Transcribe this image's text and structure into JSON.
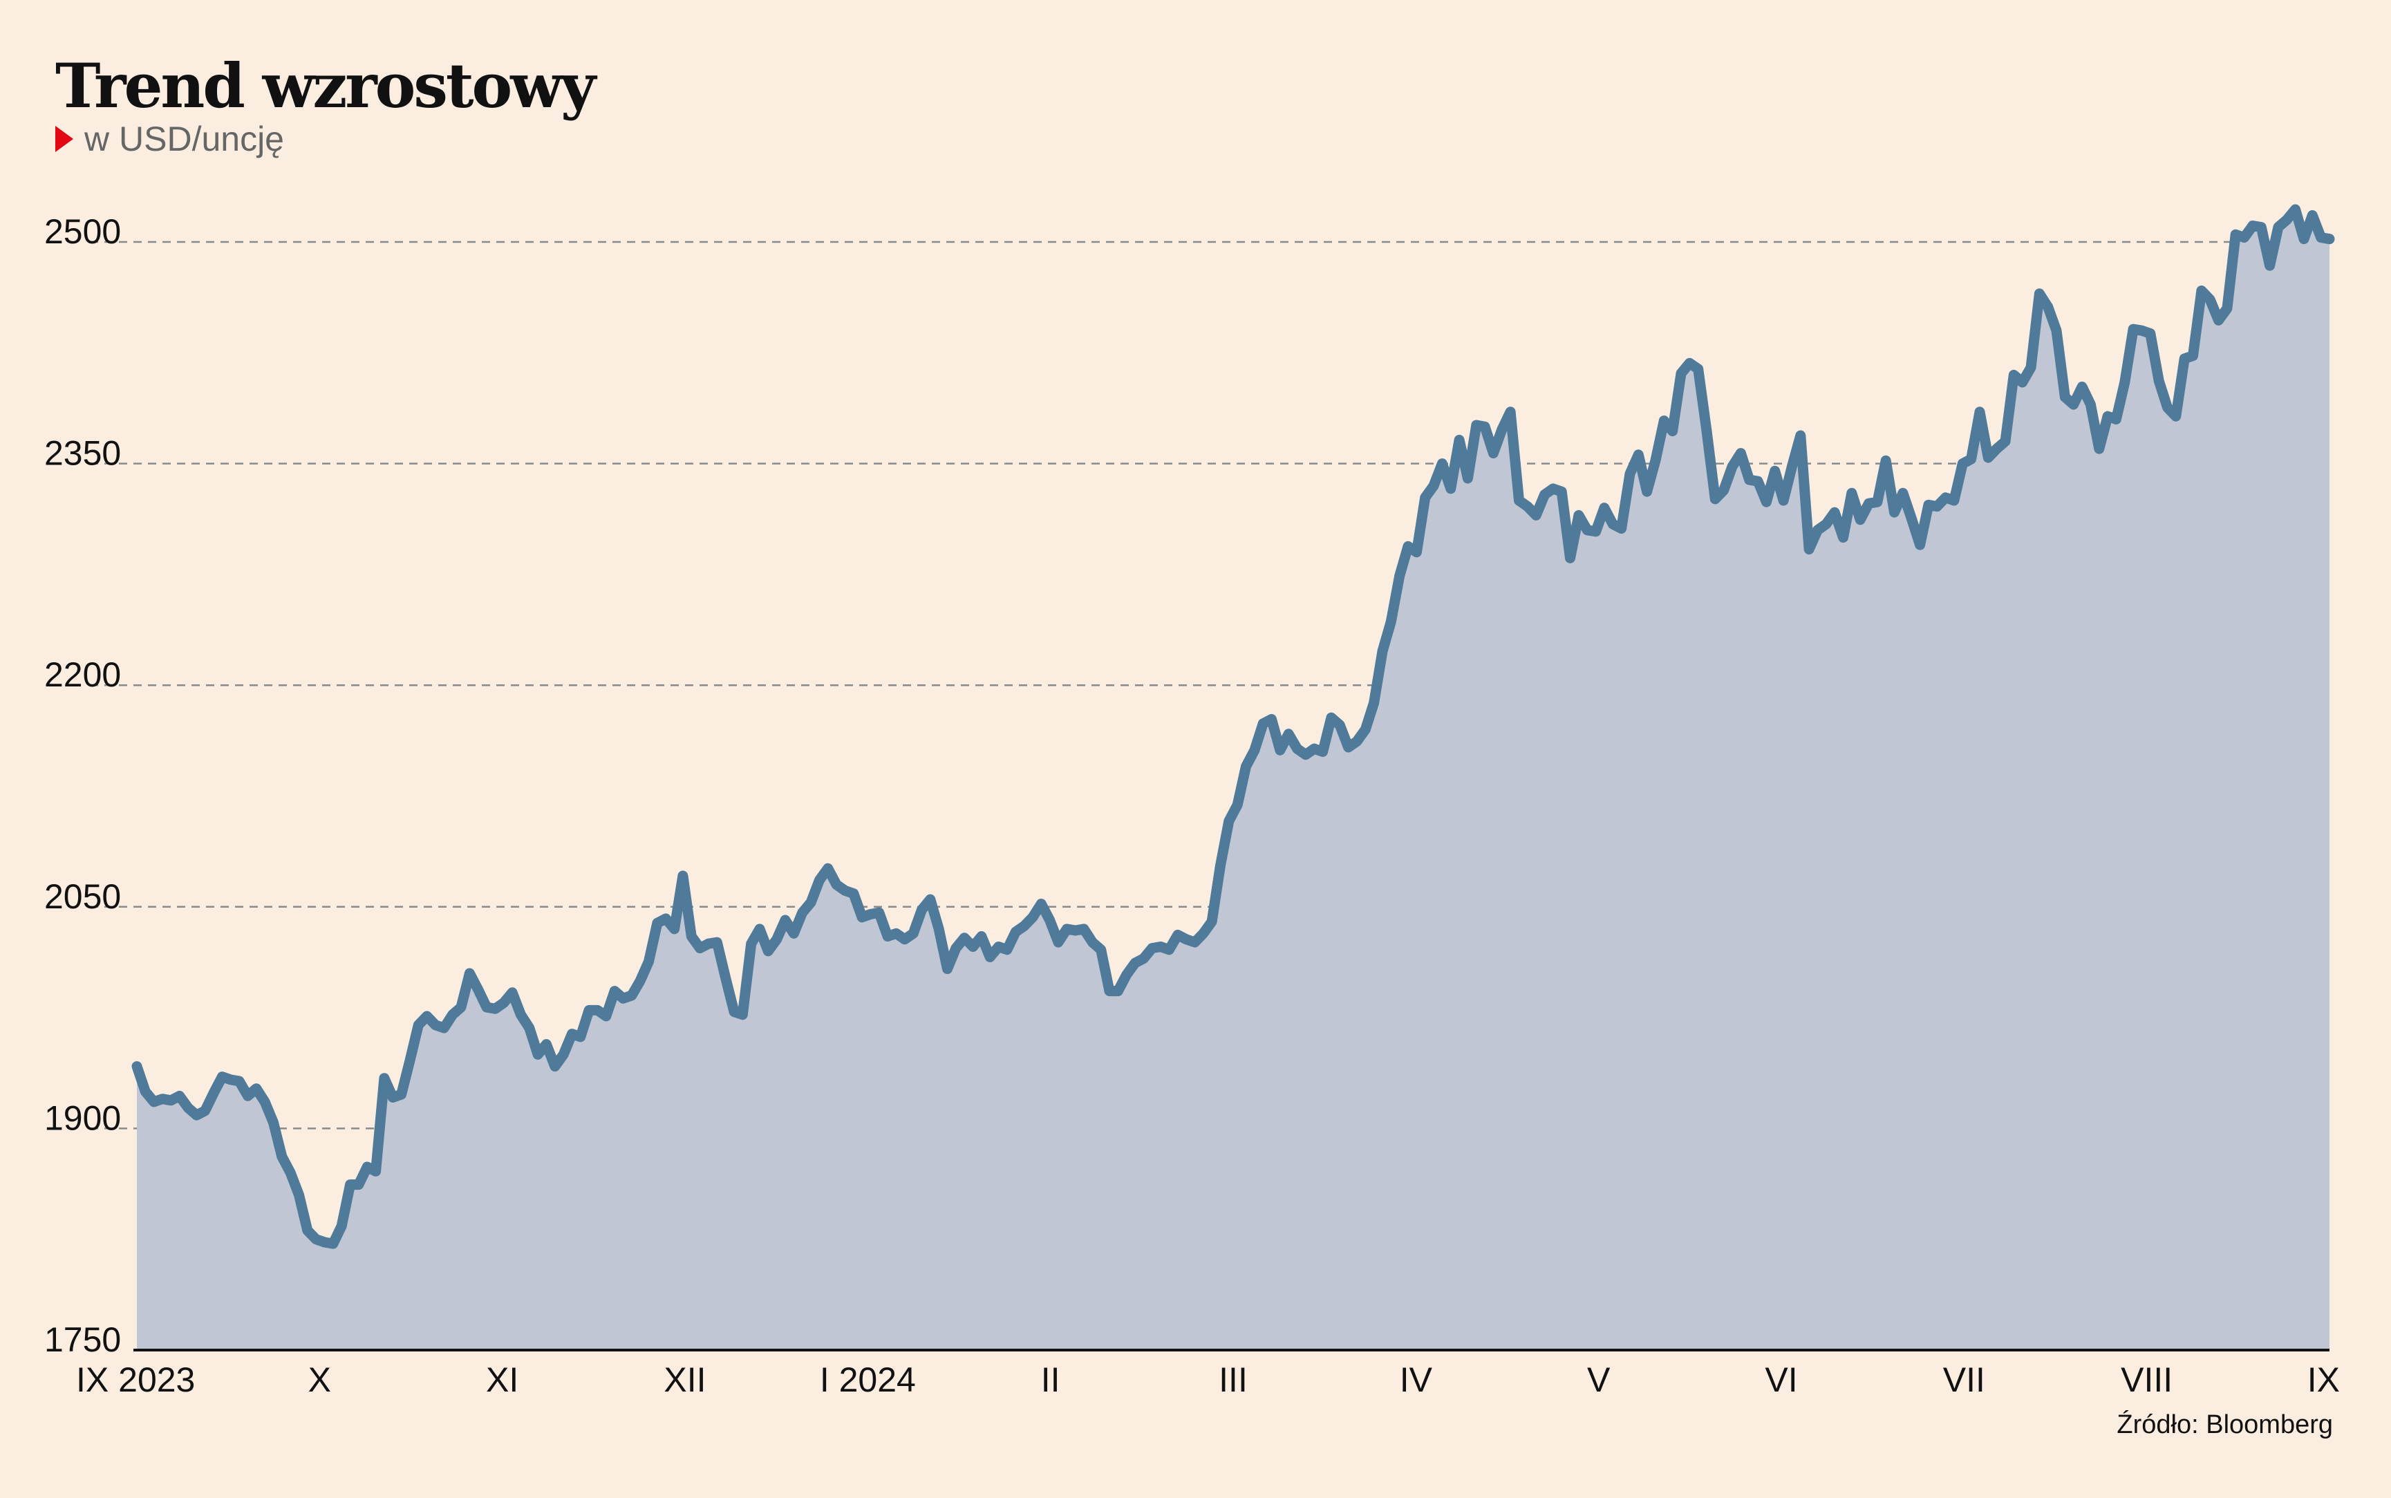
{
  "header": {
    "title": "Trend wzrostowy",
    "subtitle": "w USD/uncję",
    "source": "Źródło: Bloomberg"
  },
  "colors": {
    "background": "#fbeee1",
    "line": "#4f7a99",
    "area": "#c1c6d5",
    "grid": "#8a8a8a",
    "marker": "#e30613"
  },
  "chart_data": {
    "type": "area",
    "title": "Trend wzrostowy",
    "subtitle": "w USD/uncję",
    "xlabel": "",
    "ylabel": "",
    "ylim": [
      1750,
      2500
    ],
    "xlim": [
      0,
      12
    ],
    "yticks": [
      1750,
      1900,
      2050,
      2200,
      2350,
      2500
    ],
    "ytick_labels": [
      "1750",
      "1900",
      "2050",
      "2200",
      "2350",
      "2500"
    ],
    "xtick_labels": [
      "IX 2023",
      "X",
      "XI",
      "XII",
      "I 2024",
      "II",
      "III",
      "IV",
      "V",
      "VI",
      "VII",
      "VIII",
      "IX"
    ],
    "grid": true,
    "series": [
      {
        "values": [
          1942,
          1925,
          1918,
          1920,
          1919,
          1922,
          1914,
          1909,
          1912,
          1924,
          1935,
          1933,
          1932,
          1922,
          1927,
          1918,
          1904,
          1881,
          1870,
          1855,
          1831,
          1825,
          1823,
          1822,
          1834,
          1862,
          1862,
          1874,
          1871,
          1934,
          1921,
          1923,
          1946,
          1970,
          1976,
          1970,
          1968,
          1977,
          1982,
          2005,
          1994,
          1982,
          1981,
          1985,
          1992,
          1977,
          1968,
          1950,
          1957,
          1942,
          1950,
          1964,
          1962,
          1980,
          1980,
          1976,
          1993,
          1988,
          1990,
          2000,
          2013,
          2039,
          2042,
          2035,
          2071,
          2030,
          2022,
          2025,
          2026,
          2002,
          1979,
          1977,
          2025,
          2035,
          2020,
          2028,
          2041,
          2032,
          2046,
          2053,
          2068,
          2076,
          2065,
          2061,
          2059,
          2043,
          2045,
          2046,
          2030,
          2032,
          2028,
          2032,
          2048,
          2055,
          2035,
          2008,
          2022,
          2029,
          2023,
          2030,
          2016,
          2023,
          2021,
          2033,
          2037,
          2043,
          2052,
          2041,
          2026,
          2035,
          2034,
          2035,
          2026,
          2021,
          1993,
          1993,
          2004,
          2012,
          2015,
          2022,
          2023,
          2021,
          2031,
          2028,
          2026,
          2032,
          2040,
          2078,
          2108,
          2119,
          2145,
          2156,
          2174,
          2177,
          2156,
          2167,
          2157,
          2153,
          2157,
          2155,
          2178,
          2173,
          2158,
          2162,
          2170,
          2188,
          2223,
          2243,
          2274,
          2294,
          2290,
          2327,
          2335,
          2350,
          2333,
          2366,
          2340,
          2376,
          2375,
          2357,
          2373,
          2385,
          2325,
          2321,
          2315,
          2329,
          2333,
          2331,
          2286,
          2315,
          2305,
          2304,
          2320,
          2309,
          2306,
          2343,
          2356,
          2331,
          2352,
          2379,
          2372,
          2411,
          2418,
          2414,
          2372,
          2326,
          2332,
          2348,
          2357,
          2339,
          2338,
          2324,
          2345,
          2325,
          2348,
          2369,
          2292,
          2305,
          2309,
          2317,
          2300,
          2330,
          2312,
          2323,
          2324,
          2352,
          2317,
          2330,
          2313,
          2295,
          2322,
          2321,
          2327,
          2325,
          2350,
          2353,
          2385,
          2354,
          2360,
          2365,
          2410,
          2405,
          2415,
          2465,
          2456,
          2440,
          2395,
          2390,
          2402,
          2390,
          2360,
          2382,
          2380,
          2405,
          2441,
          2440,
          2438,
          2406,
          2388,
          2382,
          2421,
          2423,
          2467,
          2461,
          2447,
          2455,
          2505,
          2503,
          2511,
          2510,
          2484,
          2510,
          2515,
          2522,
          2502,
          2518,
          2503,
          2502
        ]
      }
    ]
  }
}
